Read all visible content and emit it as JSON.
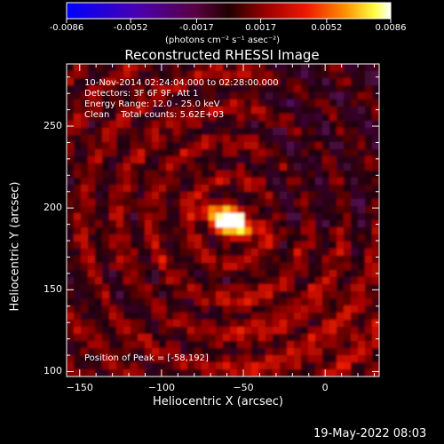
{
  "colorbar": {
    "ticks": [
      "-0.0086",
      "-0.0052",
      "-0.0017",
      "0.0017",
      "0.0052",
      "0.0086"
    ],
    "tick_values": [
      -0.0086,
      -0.0052,
      -0.0017,
      0.0017,
      0.0052,
      0.0086
    ],
    "range": [
      -0.0086,
      0.0086
    ],
    "units": "(photons cm⁻² s⁻¹ asec⁻²)",
    "colormap": "blue-purple-red-orange-yellow-white"
  },
  "chart_data": {
    "type": "heatmap",
    "title": "Reconstructed RHESSI Image",
    "xlabel": "Heliocentric X (arcsec)",
    "ylabel": "Heliocentric Y (arcsec)",
    "xlim": [
      -158,
      33
    ],
    "ylim": [
      97,
      288
    ],
    "xticks": [
      -150,
      -100,
      -50,
      0
    ],
    "yticks": [
      100,
      150,
      200,
      250
    ],
    "xtick_labels": [
      "−150",
      "−100",
      "−50",
      "0"
    ],
    "ytick_labels": [
      "100",
      "150",
      "200",
      "250"
    ],
    "peak": {
      "x": -58,
      "y": 192
    },
    "info_lines": [
      "10-Nov-2014 02:24:04.000 to 02:28:00.000",
      "Detectors: 3F 6F 9F, Att 1",
      "Energy Range: 12.0 - 25.0 keV",
      "Clean    Total counts: 5.62E+03"
    ],
    "peak_label": "Position of Peak = [-58,192]",
    "grid": false
  },
  "footer": {
    "timestamp": "19-May-2022 08:03"
  }
}
